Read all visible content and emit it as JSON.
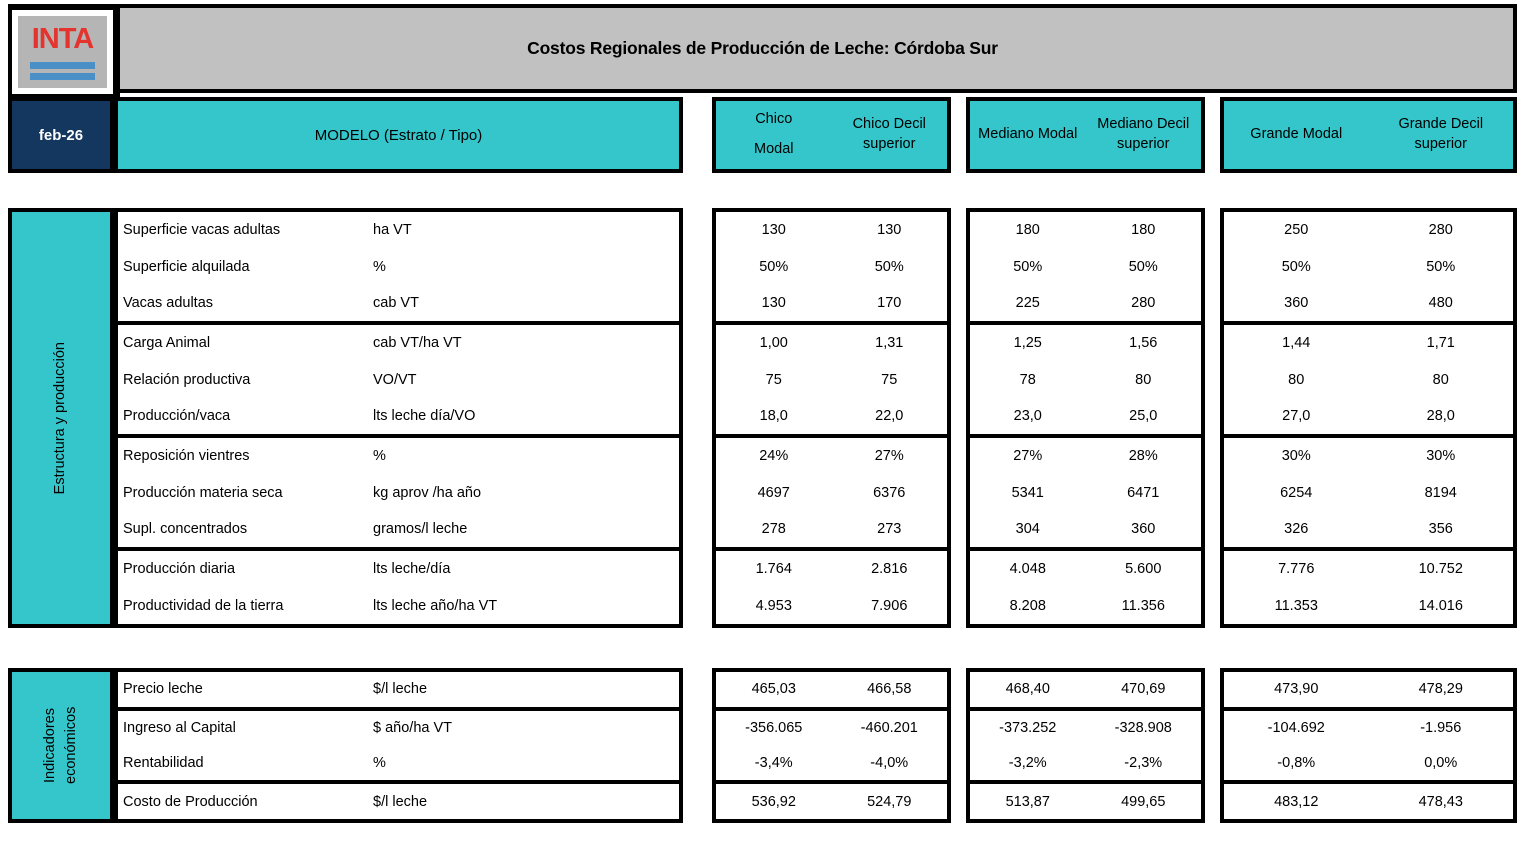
{
  "colors": {
    "teal": "#34c6ca",
    "navy": "#14375f",
    "header_gray": "#c1c1c1",
    "logo_gray": "#b5b5b5",
    "logo_red": "#e3342e",
    "logo_blue": "#4b8fc7",
    "border": "#000000"
  },
  "header": {
    "logo_text": "INTA",
    "title": "Costos Regionales de Producción de Leche: Córdoba Sur",
    "date": "feb-26",
    "model_label": "MODELO (Estrato / Tipo)",
    "groups": [
      {
        "columns": [
          {
            "text": "Chico Modal",
            "lines": [
              "Chico",
              "Modal"
            ],
            "spread": true
          },
          {
            "text": "Chico Decil superior"
          }
        ]
      },
      {
        "columns": [
          {
            "text": "Mediano Modal"
          },
          {
            "text": "Mediano Decil superior"
          }
        ]
      },
      {
        "columns": [
          {
            "text": "Grande Modal"
          },
          {
            "text": "Grande Decil superior"
          }
        ]
      }
    ]
  },
  "sections": [
    {
      "sidebar_label": "Estructura y producción",
      "row_groups": [
        {
          "rows": [
            {
              "label": "Superficie vacas adultas",
              "unit": "ha VT",
              "values": [
                "130",
                "130",
                "180",
                "180",
                "250",
                "280"
              ]
            },
            {
              "label": "Superficie alquilada",
              "unit": "%",
              "values": [
                "50%",
                "50%",
                "50%",
                "50%",
                "50%",
                "50%"
              ]
            },
            {
              "label": "Vacas adultas",
              "unit": "cab VT",
              "values": [
                "130",
                "170",
                "225",
                "280",
                "360",
                "480"
              ]
            }
          ]
        },
        {
          "rows": [
            {
              "label": "Carga Animal",
              "unit": "cab VT/ha VT",
              "values": [
                "1,00",
                "1,31",
                "1,25",
                "1,56",
                "1,44",
                "1,71"
              ]
            },
            {
              "label": "Relación productiva",
              "unit": "VO/VT",
              "values": [
                "75",
                "75",
                "78",
                "80",
                "80",
                "80"
              ]
            },
            {
              "label": "Producción/vaca",
              "unit": "lts leche día/VO",
              "values": [
                "18,0",
                "22,0",
                "23,0",
                "25,0",
                "27,0",
                "28,0"
              ]
            }
          ]
        },
        {
          "rows": [
            {
              "label": "Reposición vientres",
              "unit": "%",
              "values": [
                "24%",
                "27%",
                "27%",
                "28%",
                "30%",
                "30%"
              ]
            },
            {
              "label": "Producción materia seca",
              "unit": "kg aprov /ha año",
              "values": [
                "4697",
                "6376",
                "5341",
                "6471",
                "6254",
                "8194"
              ]
            },
            {
              "label": "Supl. concentrados",
              "unit": "gramos/l leche",
              "values": [
                "278",
                "273",
                "304",
                "360",
                "326",
                "356"
              ]
            }
          ]
        },
        {
          "rows": [
            {
              "label": "Producción diaria",
              "unit": "lts leche/día",
              "values": [
                "1.764",
                "2.816",
                "4.048",
                "5.600",
                "7.776",
                "10.752"
              ]
            },
            {
              "label": "Productividad de la tierra",
              "unit": "lts leche año/ha VT",
              "values": [
                "4.953",
                "7.906",
                "8.208",
                "11.356",
                "11.353",
                "14.016"
              ]
            }
          ]
        }
      ]
    },
    {
      "sidebar_label": "Indicadores económicos",
      "row_groups": [
        {
          "rows": [
            {
              "label": "Precio leche",
              "unit": "$/l leche",
              "values": [
                "465,03",
                "466,58",
                "468,40",
                "470,69",
                "473,90",
                "478,29"
              ]
            }
          ]
        },
        {
          "rows": [
            {
              "label": "Ingreso al Capital",
              "unit": "$ año/ha VT",
              "values": [
                "-356.065",
                "-460.201",
                "-373.252",
                "-328.908",
                "-104.692",
                "-1.956"
              ]
            },
            {
              "label": "Rentabilidad",
              "unit": "%",
              "values": [
                "-3,4%",
                "-4,0%",
                "-3,2%",
                "-2,3%",
                "-0,8%",
                "0,0%"
              ]
            }
          ]
        },
        {
          "rows": [
            {
              "label": "Costo de Producción",
              "unit": "$/l leche",
              "values": [
                "536,92",
                "524,79",
                "513,87",
                "499,65",
                "483,12",
                "478,43"
              ]
            }
          ]
        }
      ]
    }
  ]
}
